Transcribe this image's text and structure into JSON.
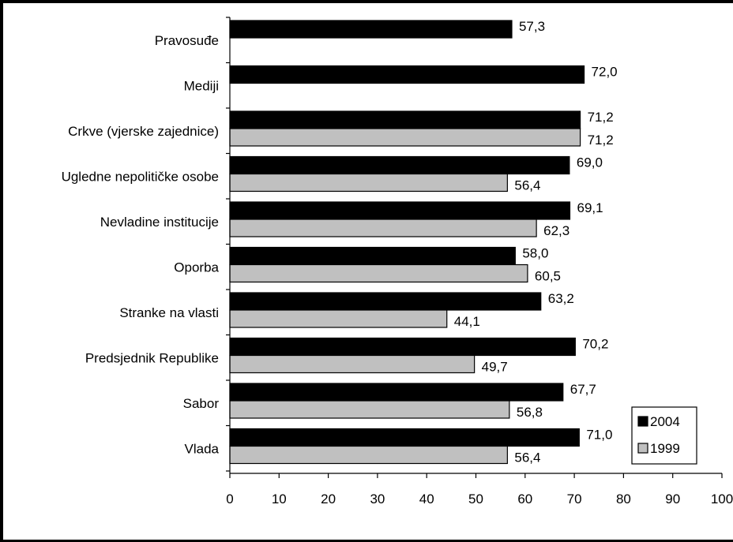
{
  "chart_data": {
    "type": "bar",
    "orientation": "horizontal",
    "categories": [
      "Pravosuđe",
      "Mediji",
      "Crkve (vjerske zajednice)",
      "Ugledne nepolitičke osobe",
      "Nevladine institucije",
      "Oporba",
      "Stranke na vlasti",
      "Predsjednik Republike",
      "Sabor",
      "Vlada"
    ],
    "series": [
      {
        "name": "2004",
        "color": "#000000",
        "values": [
          57.3,
          72.0,
          71.2,
          69.0,
          69.1,
          58.0,
          63.2,
          70.2,
          67.7,
          71.0
        ],
        "labels": [
          "57,3",
          "72,0",
          "71,2",
          "69,0",
          "69,1",
          "58,0",
          "63,2",
          "70,2",
          "67,7",
          "71,0"
        ]
      },
      {
        "name": "1999",
        "color": "#c0c0c0",
        "values": [
          null,
          null,
          71.2,
          56.4,
          62.3,
          60.5,
          44.1,
          49.7,
          56.8,
          56.4
        ],
        "labels": [
          null,
          null,
          "71,2",
          "56,4",
          "62,3",
          "60,5",
          "44,1",
          "49,7",
          "56,8",
          "56,4"
        ]
      }
    ],
    "x_ticks": [
      "0",
      "10",
      "20",
      "30",
      "40",
      "50",
      "60",
      "70",
      "80",
      "90",
      "100"
    ],
    "xlim": [
      0,
      100
    ],
    "grid": false,
    "legend_position": "bottom-right"
  }
}
